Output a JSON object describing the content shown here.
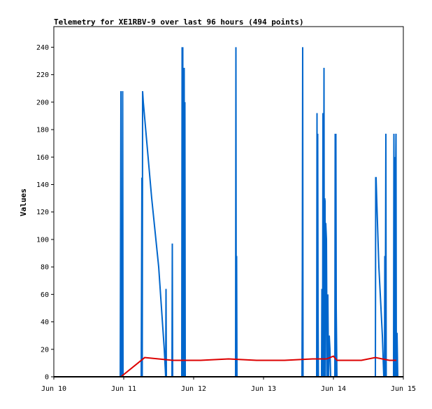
{
  "chart_data": {
    "type": "line",
    "title": "Telemetry for XE1RBV-9 over last 96 hours (494 points)",
    "xlabel": "",
    "ylabel": "Values",
    "x_range": [
      10,
      15
    ],
    "ylim": [
      0,
      255
    ],
    "x_ticks": [
      {
        "value": 10,
        "label": "Jun 10"
      },
      {
        "value": 11,
        "label": "Jun 11"
      },
      {
        "value": 12,
        "label": "Jun 12"
      },
      {
        "value": 13,
        "label": "Jun 13"
      },
      {
        "value": 14,
        "label": "Jun 14"
      },
      {
        "value": 15,
        "label": "Jun 15"
      }
    ],
    "y_ticks": [
      0,
      20,
      40,
      60,
      80,
      100,
      120,
      140,
      160,
      180,
      200,
      220,
      240
    ],
    "grid": false,
    "legend": "none",
    "series": [
      {
        "color": "#0066cc",
        "points": [
          [
            10.95,
            0
          ],
          [
            10.96,
            208
          ],
          [
            10.965,
            0
          ],
          [
            10.97,
            5
          ],
          [
            10.975,
            24
          ],
          [
            10.98,
            0
          ],
          [
            10.985,
            208
          ],
          [
            10.99,
            0
          ],
          [
            11.25,
            0
          ],
          [
            11.26,
            145
          ],
          [
            11.265,
            0
          ],
          [
            11.27,
            208
          ],
          [
            11.28,
            200
          ],
          [
            11.4,
            130
          ],
          [
            11.5,
            80
          ],
          [
            11.58,
            20
          ],
          [
            11.6,
            0
          ],
          [
            11.605,
            64
          ],
          [
            11.61,
            0
          ],
          [
            11.69,
            0
          ],
          [
            11.695,
            97
          ],
          [
            11.7,
            0
          ],
          [
            11.83,
            0
          ],
          [
            11.835,
            240
          ],
          [
            11.84,
            0
          ],
          [
            11.845,
            240
          ],
          [
            11.85,
            0
          ],
          [
            11.855,
            225
          ],
          [
            11.86,
            0
          ],
          [
            11.865,
            225
          ],
          [
            11.87,
            0
          ],
          [
            11.875,
            200
          ],
          [
            11.88,
            0
          ],
          [
            12.6,
            0
          ],
          [
            12.605,
            240
          ],
          [
            12.61,
            0
          ],
          [
            12.615,
            88
          ],
          [
            12.62,
            0
          ],
          [
            13.55,
            0
          ],
          [
            13.555,
            80
          ],
          [
            13.56,
            240
          ],
          [
            13.565,
            0
          ],
          [
            13.76,
            0
          ],
          [
            13.765,
            192
          ],
          [
            13.77,
            0
          ],
          [
            13.775,
            177
          ],
          [
            13.78,
            50
          ],
          [
            13.785,
            0
          ],
          [
            13.83,
            0
          ],
          [
            13.835,
            64
          ],
          [
            13.84,
            30
          ],
          [
            13.845,
            0
          ],
          [
            13.85,
            192
          ],
          [
            13.855,
            0
          ],
          [
            13.86,
            64
          ],
          [
            13.865,
            225
          ],
          [
            13.87,
            0
          ],
          [
            13.875,
            130
          ],
          [
            13.88,
            128
          ],
          [
            13.885,
            0
          ],
          [
            13.89,
            112
          ],
          [
            13.9,
            100
          ],
          [
            13.91,
            0
          ],
          [
            13.92,
            60
          ],
          [
            13.93,
            0
          ],
          [
            13.94,
            30
          ],
          [
            13.95,
            20
          ],
          [
            13.96,
            0
          ],
          [
            14.02,
            0
          ],
          [
            14.025,
            177
          ],
          [
            14.03,
            0
          ],
          [
            14.035,
            177
          ],
          [
            14.04,
            50
          ],
          [
            14.05,
            0
          ],
          [
            14.6,
            0
          ],
          [
            14.605,
            145
          ],
          [
            14.61,
            145
          ],
          [
            14.62,
            128
          ],
          [
            14.65,
            80
          ],
          [
            14.7,
            30
          ],
          [
            14.72,
            0
          ],
          [
            14.73,
            0
          ],
          [
            14.735,
            88
          ],
          [
            14.74,
            0
          ],
          [
            14.75,
            177
          ],
          [
            14.755,
            0
          ],
          [
            14.86,
            0
          ],
          [
            14.865,
            177
          ],
          [
            14.87,
            0
          ],
          [
            14.875,
            160
          ],
          [
            14.88,
            0
          ],
          [
            14.89,
            145
          ],
          [
            14.895,
            177
          ],
          [
            14.9,
            0
          ],
          [
            14.905,
            24
          ],
          [
            14.91,
            32
          ],
          [
            14.92,
            0
          ]
        ]
      },
      {
        "color": "#dd0000",
        "points": [
          [
            10.96,
            0
          ],
          [
            11.3,
            14
          ],
          [
            11.7,
            12
          ],
          [
            12.1,
            12
          ],
          [
            12.5,
            13
          ],
          [
            12.9,
            12
          ],
          [
            13.3,
            12
          ],
          [
            13.7,
            13
          ],
          [
            13.9,
            13
          ],
          [
            14.0,
            15
          ],
          [
            14.05,
            12
          ],
          [
            14.4,
            12
          ],
          [
            14.6,
            14
          ],
          [
            14.8,
            12
          ],
          [
            14.9,
            12
          ]
        ]
      }
    ]
  }
}
